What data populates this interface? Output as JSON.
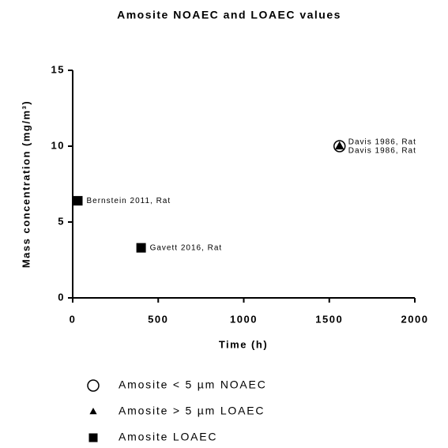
{
  "chart_data": {
    "type": "scatter",
    "title": "Amosite NOAEC and LOAEC values",
    "xlabel": "Time (h)",
    "ylabel": "Mass concentration (mg/m³)",
    "xlim": [
      0,
      2000
    ],
    "xticks": [
      0,
      500,
      1000,
      1500,
      2000
    ],
    "ylim": [
      0,
      15
    ],
    "yticks": [
      0,
      5,
      10,
      15
    ],
    "series": [
      {
        "name": "Amosite < 5 µm NOAEC",
        "marker": "circle",
        "filled": false,
        "color": "#000000",
        "x": [
          1560
        ],
        "values": [
          10
        ],
        "labels": [
          "Davis 1986, Rat"
        ]
      },
      {
        "name": "Amosite > 5 µm LOAEC",
        "marker": "triangle",
        "filled": true,
        "color": "#000000",
        "x": [
          1560
        ],
        "values": [
          10
        ],
        "labels": [
          "Davis 1986, Rat"
        ]
      },
      {
        "name": "Amosite LOAEC",
        "marker": "square",
        "filled": true,
        "color": "#000000",
        "x": [
          30,
          400
        ],
        "values": [
          6.4,
          3.3
        ],
        "labels": [
          "Bernstein 2011, Rat",
          "Gavett 2016, Rat"
        ]
      }
    ]
  }
}
